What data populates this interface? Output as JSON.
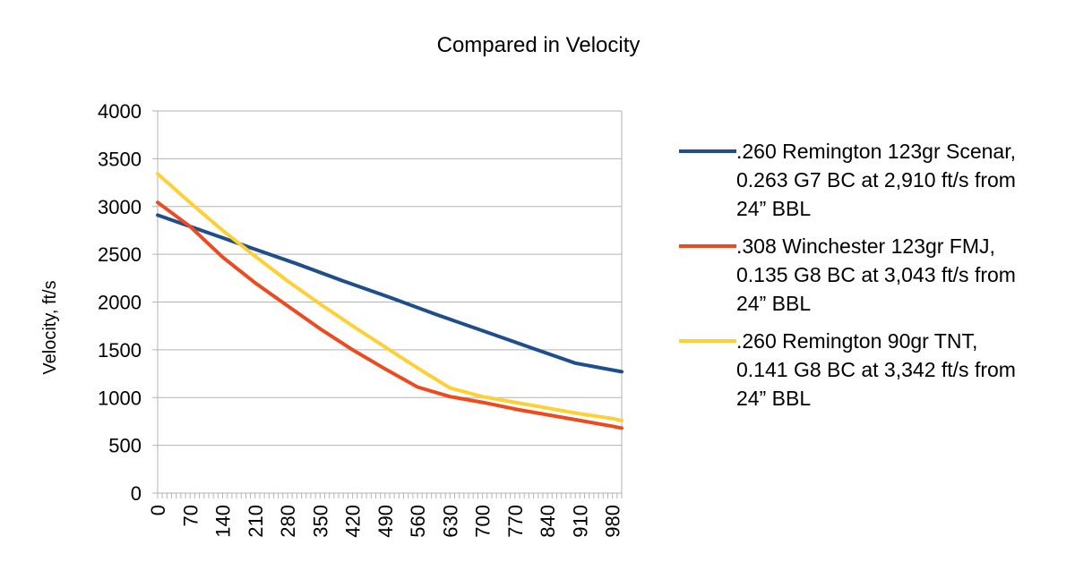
{
  "chart_data": {
    "type": "line",
    "title": "",
    "subtitle": "Compared in Velocity",
    "xlabel": "",
    "ylabel": "Velocity, ft/s",
    "ylim": [
      0,
      4000
    ],
    "yticks": [
      0,
      500,
      1000,
      1500,
      2000,
      2500,
      3000,
      3500,
      4000
    ],
    "xlim": [
      0,
      1000
    ],
    "xtick_labels": [
      "0",
      "70",
      "140",
      "210",
      "280",
      "350",
      "420",
      "490",
      "560",
      "630",
      "700",
      "770",
      "840",
      "910",
      "980"
    ],
    "grid": true,
    "legend_position": "right",
    "series": [
      {
        "name": ".260 Remington 123gr Scenar, 0.263 G7 BC at 2,910 ft/s from 24” BBL",
        "legend_lines": [
          ".260 Remington 123gr Scenar,",
          "0.263 G7 BC at 2,910 ft/s from",
          "24” BBL"
        ],
        "color": "#1f4e8c",
        "x": [
          0,
          100,
          200,
          300,
          400,
          500,
          600,
          700,
          800,
          900,
          1000
        ],
        "y": [
          2910,
          2740,
          2570,
          2400,
          2220,
          2050,
          1870,
          1700,
          1530,
          1360,
          1270
        ]
      },
      {
        "name": ".308 Winchester 123gr FMJ, 0.135 G8 BC at 3,043 ft/s from 24” BBL",
        "legend_lines": [
          ".308 Winchester 123gr FMJ,",
          "0.135 G8 BC at 3,043 ft/s from",
          "24” BBL"
        ],
        "color": "#ee4a20",
        "x": [
          0,
          70,
          140,
          210,
          280,
          350,
          420,
          490,
          560,
          630,
          700,
          770,
          840,
          910,
          980,
          1000
        ],
        "y": [
          3043,
          2790,
          2470,
          2200,
          1960,
          1720,
          1500,
          1300,
          1110,
          1010,
          950,
          880,
          820,
          760,
          700,
          680
        ]
      },
      {
        "name": ".260 Remington 90gr TNT, 0.141 G8 BC at 3,342 ft/s from 24” BBL",
        "legend_lines": [
          ".260 Remington 90gr TNT,",
          "0.141 G8 BC at 3,342 ft/s from",
          "24” BBL"
        ],
        "color": "#ffd035",
        "x": [
          0,
          70,
          140,
          210,
          280,
          350,
          420,
          490,
          560,
          630,
          700,
          770,
          840,
          910,
          980,
          1000
        ],
        "y": [
          3342,
          3040,
          2750,
          2480,
          2220,
          1980,
          1750,
          1530,
          1310,
          1100,
          1010,
          950,
          890,
          830,
          780,
          760
        ]
      }
    ]
  }
}
